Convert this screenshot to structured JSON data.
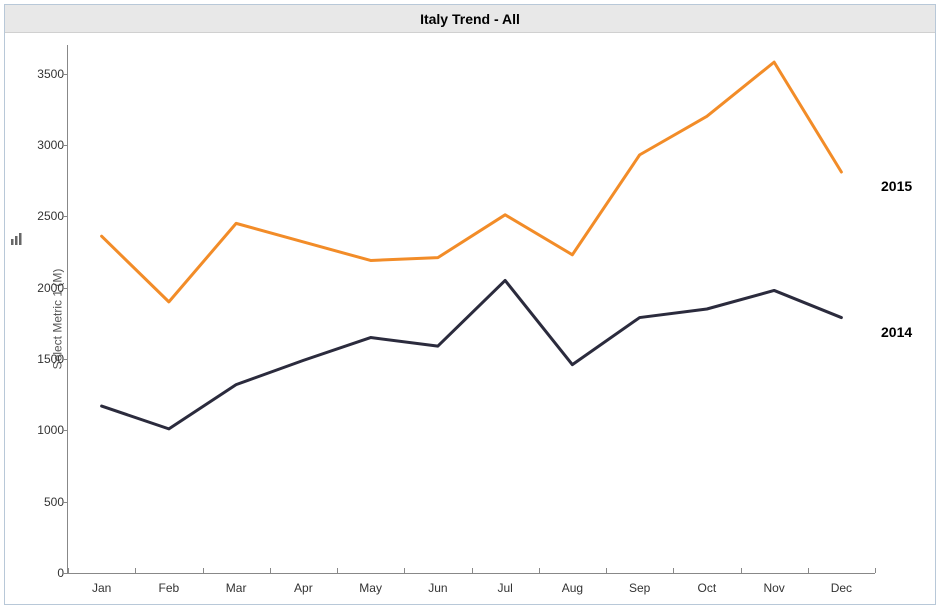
{
  "chart": {
    "type": "line",
    "title": "Italy Trend - All",
    "title_fontsize": 14,
    "title_bg": "#e8e8e8",
    "border_color": "#b8c8d8",
    "background_color": "#ffffff",
    "axis_color": "#888888",
    "tick_font_color": "#333333",
    "tick_fontsize": 12,
    "y_axis": {
      "label": "Select Metric 1 (M)",
      "label_fontsize": 12,
      "min": 0,
      "max": 3700,
      "ticks": [
        0,
        500,
        1000,
        1500,
        2000,
        2500,
        3000,
        3500
      ]
    },
    "x_axis": {
      "categories": [
        "Jan",
        "Feb",
        "Mar",
        "Apr",
        "May",
        "Jun",
        "Jul",
        "Aug",
        "Sep",
        "Oct",
        "Nov",
        "Dec"
      ]
    },
    "series": [
      {
        "name": "2015",
        "color": "#f28c28",
        "line_width": 3,
        "values": [
          2360,
          1900,
          2450,
          2320,
          2190,
          2210,
          2510,
          2230,
          2930,
          3200,
          3580,
          2810
        ]
      },
      {
        "name": "2014",
        "color": "#2b2b3d",
        "line_width": 3,
        "values": [
          1170,
          1010,
          1320,
          1490,
          1650,
          1590,
          2050,
          1460,
          1790,
          1850,
          1980,
          1790
        ]
      }
    ],
    "series_label_fontsize": 14
  }
}
